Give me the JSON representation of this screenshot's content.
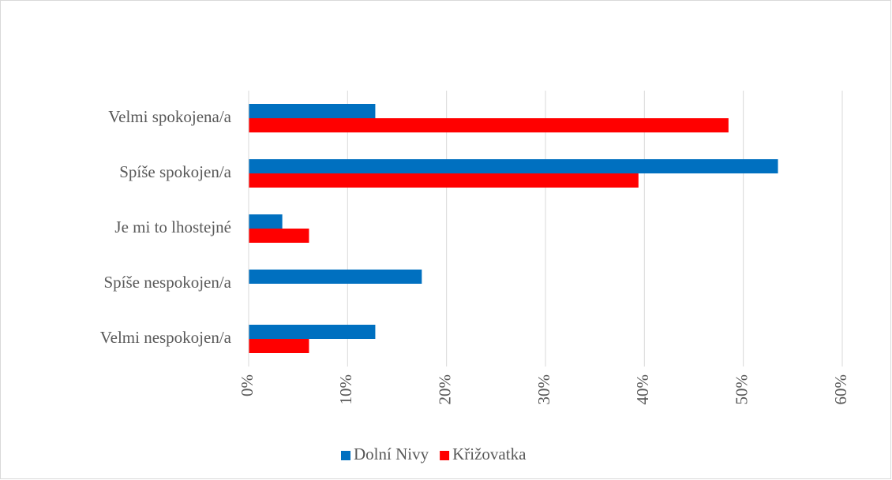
{
  "chart_data": {
    "type": "bar",
    "orientation": "horizontal",
    "categories": [
      "Velmi spokojena/a",
      "Spíše spokojen/a",
      "Je mi to lhostejné",
      "Spíše nespokojen/a",
      "Velmi nespokojen/a"
    ],
    "series": [
      {
        "name": "Dolní Nivy",
        "color": "#0070c0",
        "values": [
          12.8,
          53.5,
          3.4,
          17.5,
          12.8
        ]
      },
      {
        "name": "Křižovatka",
        "color": "#ff0000",
        "values": [
          48.5,
          39.4,
          6.1,
          0,
          6.1
        ]
      }
    ],
    "xlim": [
      0,
      60
    ],
    "xticks": [
      {
        "value": 0,
        "label": "0%"
      },
      {
        "value": 10,
        "label": "10%"
      },
      {
        "value": 20,
        "label": "20%"
      },
      {
        "value": 30,
        "label": "30%"
      },
      {
        "value": 40,
        "label": "40%"
      },
      {
        "value": 50,
        "label": "50%"
      },
      {
        "value": 60,
        "label": "60%"
      }
    ],
    "grid": true,
    "legend": "bottom"
  }
}
